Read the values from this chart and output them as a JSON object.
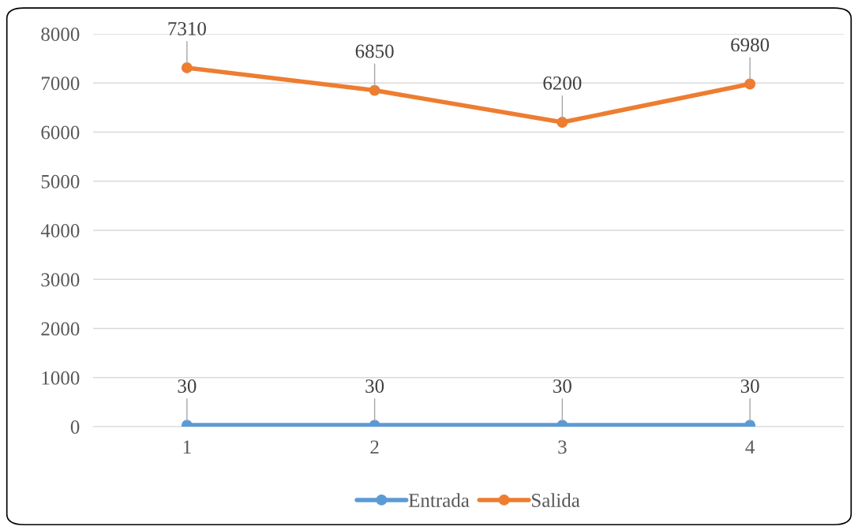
{
  "chart_data": {
    "type": "line",
    "categories": [
      "1",
      "2",
      "3",
      "4"
    ],
    "series": [
      {
        "name": "Entrada",
        "color": "#5b9bd5",
        "values": [
          30,
          30,
          30,
          30
        ]
      },
      {
        "name": "Salida",
        "color": "#ed7d31",
        "values": [
          7310,
          6850,
          6200,
          6980
        ]
      }
    ],
    "ylim": [
      0,
      8000
    ],
    "yticks": [
      0,
      1000,
      2000,
      3000,
      4000,
      5000,
      6000,
      7000,
      8000
    ],
    "grid": "y",
    "legend": "bottom",
    "marker": "circle",
    "line_style": "solid",
    "data_labels": true
  }
}
